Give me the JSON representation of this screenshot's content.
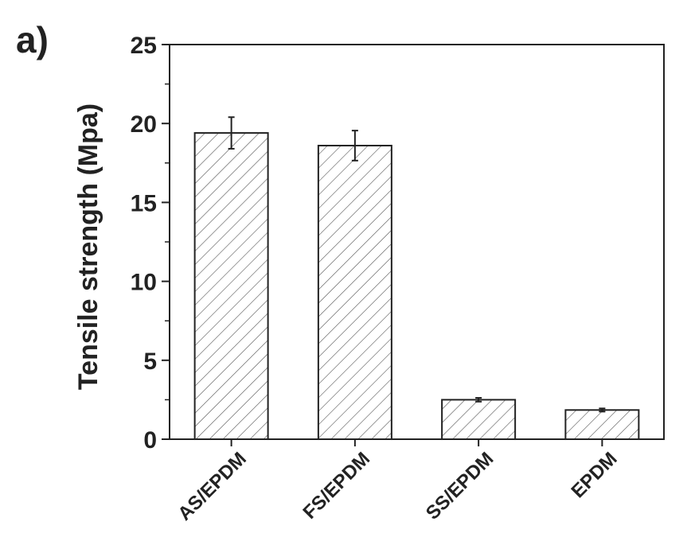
{
  "panel_label": "a)",
  "chart_data": {
    "type": "bar",
    "categories": [
      "AS/EPDM",
      "FS/EPDM",
      "SS/EPDM",
      "EPDM"
    ],
    "values": [
      19.4,
      18.6,
      2.5,
      1.85
    ],
    "errors": [
      1.0,
      0.95,
      0.12,
      0.1
    ],
    "ylabel": "Tensile strength (Mpa)",
    "xlabel": "",
    "ylim": [
      0,
      25
    ],
    "yticks": [
      0,
      5,
      10,
      15,
      20,
      25
    ],
    "bar_fill": "hatched",
    "colors": {
      "bar_stroke": "#222222",
      "hatch": "#555555",
      "axis": "#222222"
    },
    "grid": false,
    "legend": "none"
  }
}
